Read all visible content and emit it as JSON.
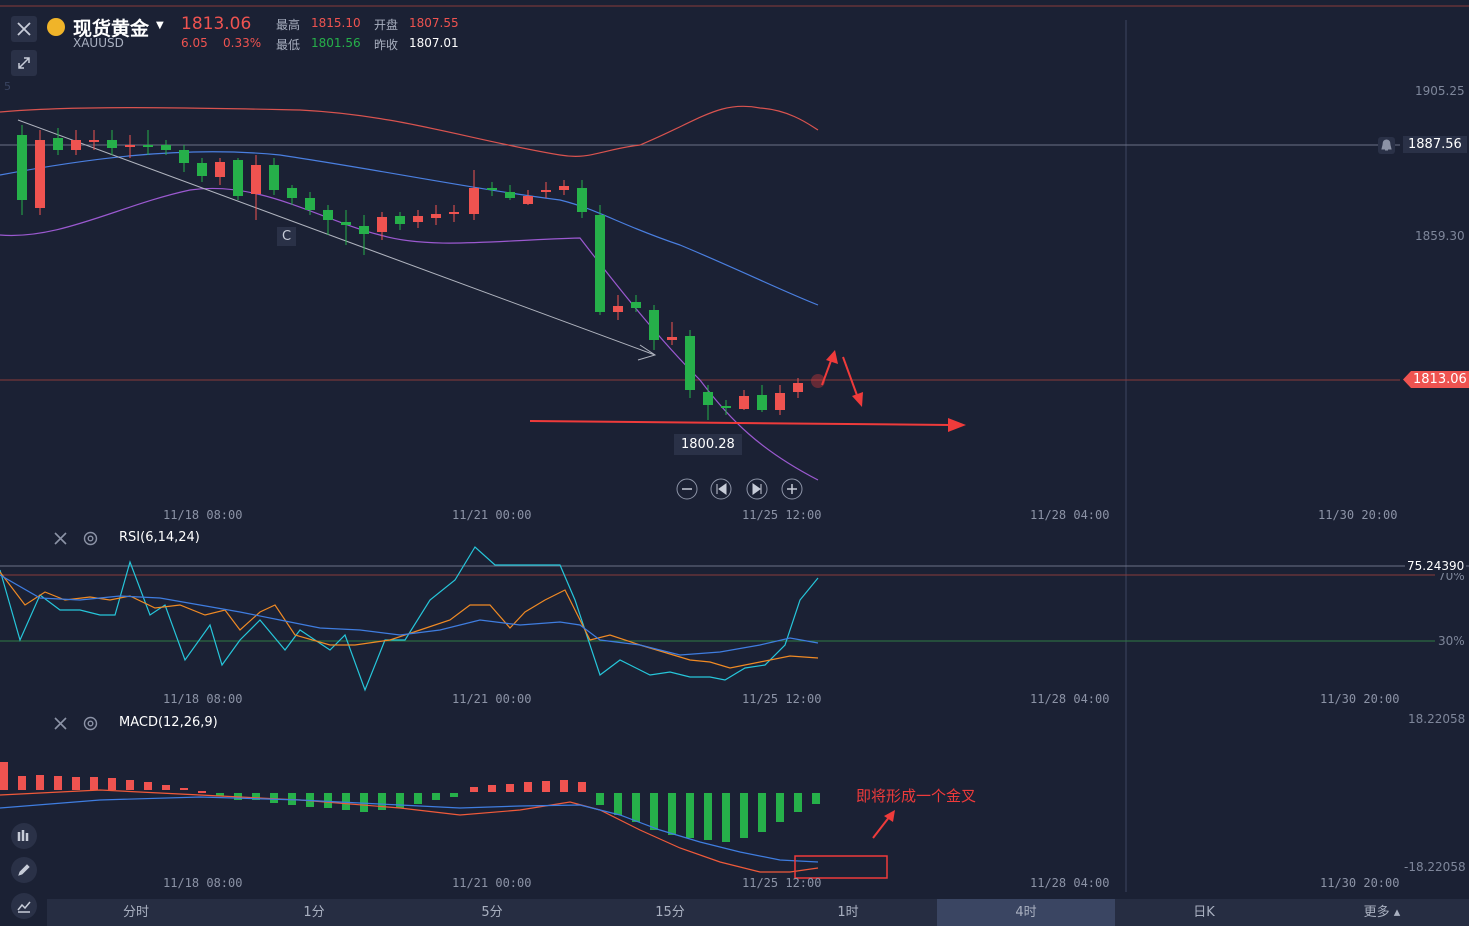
{
  "header": {
    "symbol_name": "现货黄金",
    "symbol_code": "XAUUSD",
    "price": "1813.06",
    "change": "6.05",
    "change_pct": "0.33%",
    "high_label": "最高",
    "high": "1815.10",
    "open_label": "开盘",
    "open": "1807.55",
    "low_label": "最低",
    "low": "1801.56",
    "prev_label": "昨收",
    "prev": "1807.01"
  },
  "main_chart": {
    "price_axis": [
      "1905.25",
      "1859.30"
    ],
    "crosshair_price": "1887.56",
    "last_price_tag": "1813.06",
    "low_tag": "1800.28",
    "marker_c": "C",
    "marker_partial": "5",
    "time_labels": [
      "11/18 08:00",
      "11/21 00:00",
      "11/25 12:00",
      "11/28 04:00",
      "11/30 20:00"
    ]
  },
  "rsi_panel": {
    "title": "RSI(6,14,24)",
    "crosshair_value": "75.24390",
    "levels": [
      "70%",
      "30%"
    ],
    "time_labels": [
      "11/18 08:00",
      "11/21 00:00",
      "11/25 12:00",
      "11/28 04:00",
      "11/30 20:00"
    ]
  },
  "macd_panel": {
    "title": "MACD(12,26,9)",
    "axis_top": "18.22058",
    "axis_bottom": "-18.22058",
    "annotation": "即将形成一个金叉",
    "time_labels": [
      "11/18 08:00",
      "11/21 00:00",
      "11/25 12:00",
      "11/28 04:00",
      "11/30 20:00"
    ]
  },
  "timeframes": [
    {
      "label": "分时",
      "active": false
    },
    {
      "label": "1分",
      "active": false
    },
    {
      "label": "5分",
      "active": false
    },
    {
      "label": "15分",
      "active": false
    },
    {
      "label": "1时",
      "active": false
    },
    {
      "label": "4时",
      "active": true
    },
    {
      "label": "日K",
      "active": false
    },
    {
      "label": "更多",
      "active": false
    }
  ],
  "icons": {
    "close": "close-icon",
    "fullscreen": "shrink-icon",
    "alarm": "bell-icon",
    "settings": "gear-icon",
    "indicator": "indicator-icon",
    "draw": "pencil-icon",
    "chart_type": "line-chart-icon"
  },
  "colors": {
    "up": "#ef5350",
    "down": "#26b04a",
    "background": "#1b2134",
    "accent_active": "#3a4562"
  }
}
